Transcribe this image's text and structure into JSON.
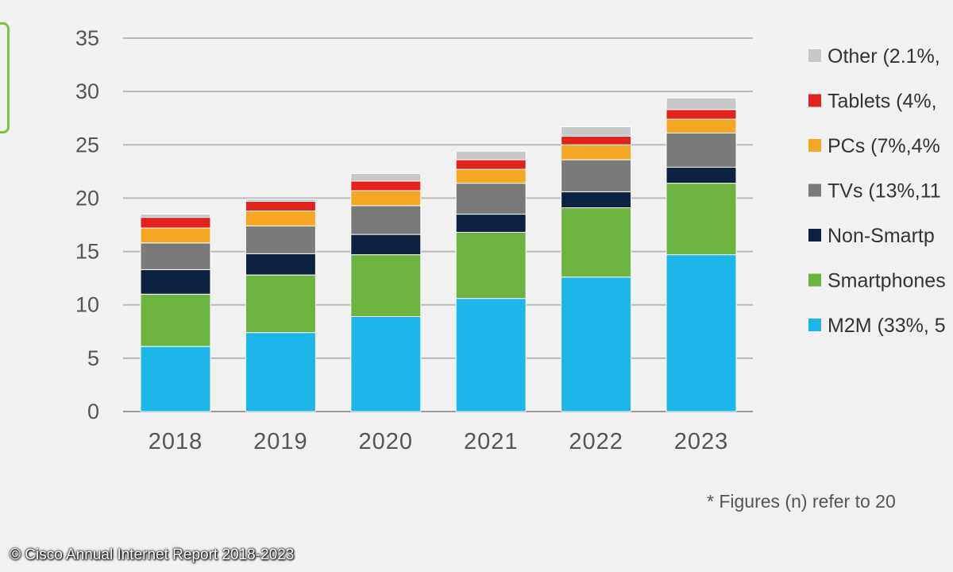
{
  "chart_data": {
    "type": "bar",
    "stacked": true,
    "categories": [
      "2018",
      "2019",
      "2020",
      "2021",
      "2022",
      "2023"
    ],
    "ylim": [
      0,
      35
    ],
    "yticks": [
      0,
      5,
      10,
      15,
      20,
      25,
      30,
      35
    ],
    "grid": true,
    "legend_position": "right",
    "series": [
      {
        "name": "M2M (33%, 5",
        "color": "#1cb7e8",
        "values": [
          6.1,
          7.4,
          8.9,
          10.6,
          12.6,
          14.7
        ]
      },
      {
        "name": "Smartphones",
        "color": "#6cb33f",
        "values": [
          4.9,
          5.4,
          5.8,
          6.2,
          6.5,
          6.7
        ]
      },
      {
        "name": "Non-Smartp",
        "color": "#0d2240",
        "values": [
          2.3,
          2.0,
          1.9,
          1.7,
          1.5,
          1.5
        ]
      },
      {
        "name": "TVs (13%,11",
        "color": "#7a7a7a",
        "values": [
          2.5,
          2.6,
          2.7,
          2.9,
          3.0,
          3.2
        ]
      },
      {
        "name": "PCs (7%,4%",
        "color": "#f5a623",
        "values": [
          1.4,
          1.4,
          1.4,
          1.3,
          1.4,
          1.3
        ]
      },
      {
        "name": "Tablets (4%,",
        "color": "#e0231c",
        "values": [
          1.0,
          0.9,
          0.9,
          0.9,
          0.8,
          0.9
        ]
      },
      {
        "name": "Other (2.1%,",
        "color": "#c8c8c8",
        "values": [
          0.3,
          0.2,
          0.7,
          0.8,
          0.9,
          1.1
        ]
      }
    ]
  },
  "footnote": "* Figures (n) refer to 20",
  "copyright": "© Cisco Annual Internet Report 2018-2023"
}
